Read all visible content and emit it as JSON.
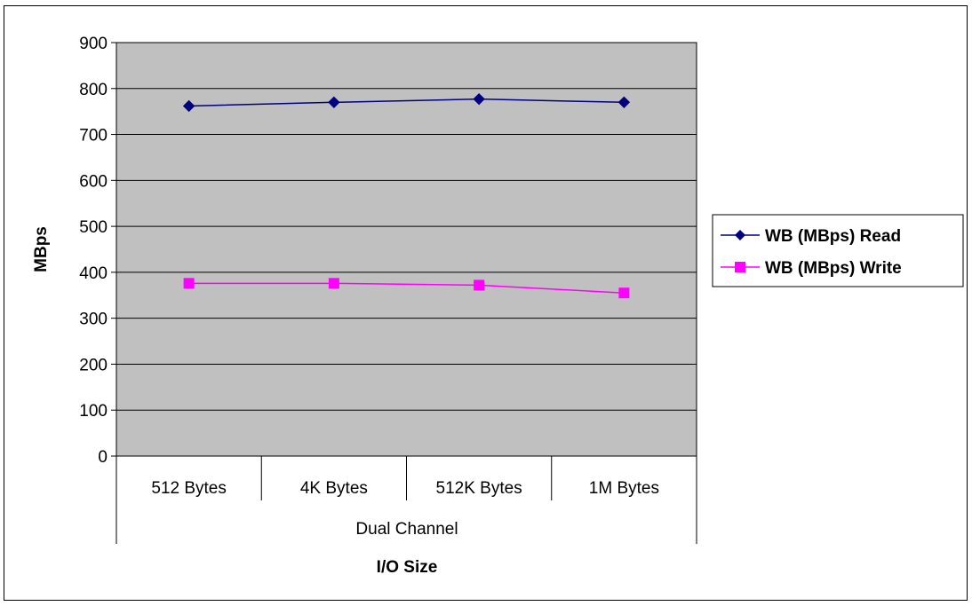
{
  "chart_data": {
    "type": "line",
    "title": "",
    "ylabel": "MBps",
    "xlabel": "I/O Size",
    "group_label": "Dual Channel",
    "categories": [
      "512 Bytes",
      "4K Bytes",
      "512K Bytes",
      "1M Bytes"
    ],
    "ylim": [
      0,
      900
    ],
    "yticks": [
      0,
      100,
      200,
      300,
      400,
      500,
      600,
      700,
      800,
      900
    ],
    "grid": true,
    "legend_position": "right",
    "plot_background": "#c0c0c0",
    "series": [
      {
        "name": "WB (MBps)  Read",
        "values": [
          762,
          770,
          777,
          770
        ],
        "color": "#000080",
        "marker": "diamond"
      },
      {
        "name": "WB (MBps)  Write",
        "values": [
          376,
          376,
          372,
          355
        ],
        "color": "#ff00ff",
        "marker": "square"
      }
    ]
  }
}
